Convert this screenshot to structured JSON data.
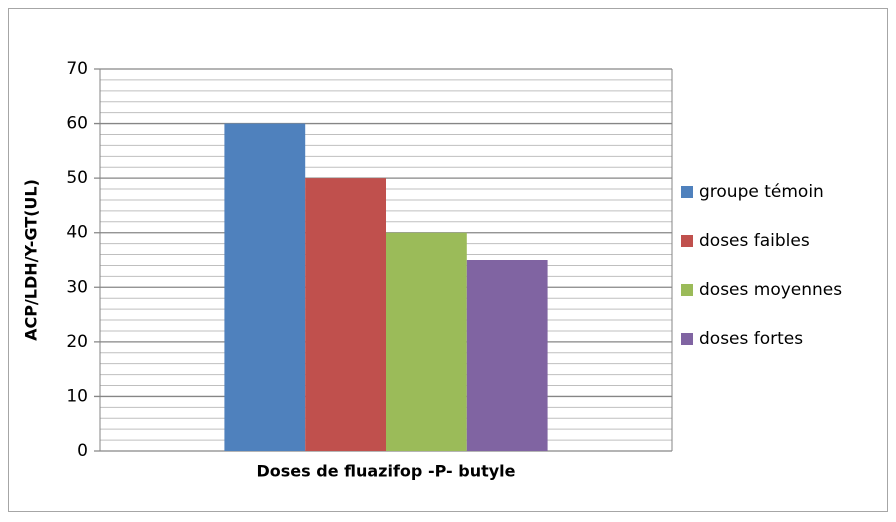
{
  "chart_data": {
    "type": "bar",
    "x_label": "Doses de fluazifop -P- butyle",
    "y_label": "ACP/LDH/Y-GT(UL)",
    "categories": [
      null
    ],
    "series": [
      {
        "name": "groupe témoin",
        "color": "#4f81bd",
        "values": [
          60
        ]
      },
      {
        "name": "doses faibles",
        "color": "#c0504d",
        "values": [
          50
        ]
      },
      {
        "name": "doses moyennes",
        "color": "#9bbb59",
        "values": [
          40
        ]
      },
      {
        "name": "doses fortes",
        "color": "#8064a2",
        "values": [
          35
        ]
      }
    ],
    "ylim": [
      0,
      70
    ],
    "yticks": [
      0,
      10,
      20,
      30,
      40,
      50,
      60,
      70
    ],
    "minor_yticks": [
      2,
      4,
      6,
      8,
      12,
      14,
      16,
      18,
      22,
      24,
      26,
      28,
      32,
      34,
      36,
      38,
      42,
      44,
      46,
      48,
      52,
      54,
      56,
      58,
      62,
      64,
      66,
      68
    ],
    "grid": true,
    "legend": "right"
  }
}
